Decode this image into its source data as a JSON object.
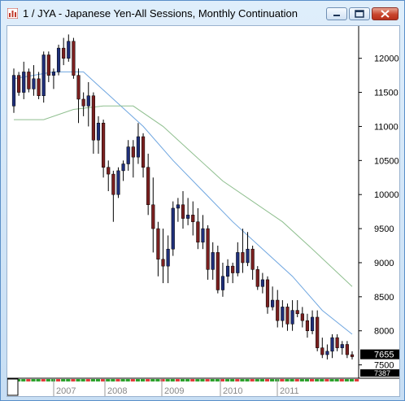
{
  "window": {
    "title": "1 / JYA - Japanese Yen-All Sessions, Monthly Continuation",
    "controls": [
      "minimize-icon",
      "maximize-icon",
      "close-icon"
    ],
    "close_color": "#c8452d"
  },
  "chart_data": {
    "type": "candlestick",
    "title": "1 / JYA - Japanese Yen-All Sessions, Monthly Continuation",
    "ylim": [
      7340,
      12450
    ],
    "y_ticks": [
      12000,
      11500,
      11000,
      10500,
      10000,
      9500,
      9000,
      8500,
      8000,
      7500
    ],
    "x_ticks": [
      "2007",
      "2008",
      "2009",
      "2010",
      "2011"
    ],
    "last_price": "7655",
    "partial_label": "7387",
    "colors": {
      "up": "#1f2f7a",
      "down": "#7a1f1f",
      "ma_fast": "#6fa6e0",
      "ma_slow": "#8fbf8f",
      "last_box": "#000000"
    },
    "ohlc": [
      [
        11300,
        11850,
        11200,
        11750
      ],
      [
        11750,
        11800,
        11450,
        11500
      ],
      [
        11500,
        11950,
        11400,
        11800
      ],
      [
        11800,
        11850,
        11500,
        11550
      ],
      [
        11550,
        11900,
        11450,
        11700
      ],
      [
        11700,
        11800,
        11400,
        11450
      ],
      [
        11450,
        12100,
        11350,
        12050
      ],
      [
        12050,
        12100,
        11650,
        11750
      ],
      [
        11750,
        11850,
        11550,
        11800
      ],
      [
        11800,
        12200,
        11750,
        12150
      ],
      [
        12150,
        12300,
        11900,
        12000
      ],
      [
        12000,
        12350,
        11950,
        12250
      ],
      [
        12250,
        12300,
        11700,
        11750
      ],
      [
        11750,
        11850,
        11050,
        11400
      ],
      [
        11400,
        11500,
        11150,
        11300
      ],
      [
        11300,
        11650,
        11000,
        11450
      ],
      [
        11450,
        11500,
        10600,
        10800
      ],
      [
        10800,
        11150,
        10600,
        11050
      ],
      [
        11050,
        11100,
        10250,
        10400
      ],
      [
        10400,
        10500,
        10050,
        10300
      ],
      [
        10300,
        10350,
        9600,
        10000
      ],
      [
        10000,
        10400,
        9950,
        10350
      ],
      [
        10350,
        10500,
        10200,
        10450
      ],
      [
        10450,
        10800,
        10350,
        10700
      ],
      [
        10700,
        10800,
        10250,
        10550
      ],
      [
        10550,
        11050,
        10450,
        10850
      ],
      [
        10850,
        10900,
        10250,
        10400
      ],
      [
        10400,
        10600,
        9700,
        9850
      ],
      [
        9850,
        10250,
        9150,
        9500
      ],
      [
        9500,
        9600,
        8800,
        9050
      ],
      [
        9050,
        9500,
        8700,
        8950
      ],
      [
        8950,
        9400,
        8700,
        9200
      ],
      [
        9200,
        9900,
        9100,
        9800
      ],
      [
        9800,
        9950,
        9600,
        9850
      ],
      [
        9850,
        10050,
        9500,
        9650
      ],
      [
        9650,
        9950,
        9550,
        9700
      ],
      [
        9700,
        9900,
        9400,
        9600
      ],
      [
        9600,
        9800,
        9200,
        9300
      ],
      [
        9300,
        9700,
        9200,
        9500
      ],
      [
        9500,
        9550,
        8750,
        8900
      ],
      [
        8900,
        9300,
        8750,
        9150
      ],
      [
        9150,
        9250,
        8550,
        8600
      ],
      [
        8600,
        9000,
        8500,
        8800
      ],
      [
        8800,
        9050,
        8700,
        8950
      ],
      [
        8950,
        9000,
        8700,
        8850
      ],
      [
        8850,
        9300,
        8800,
        9150
      ],
      [
        9150,
        9500,
        8850,
        9000
      ],
      [
        9000,
        9450,
        8950,
        9200
      ],
      [
        9200,
        9250,
        8750,
        8900
      ],
      [
        8900,
        8950,
        8600,
        8650
      ],
      [
        8650,
        8850,
        8550,
        8750
      ],
      [
        8750,
        8800,
        8250,
        8350
      ],
      [
        8350,
        8650,
        8300,
        8450
      ],
      [
        8450,
        8600,
        8050,
        8150
      ],
      [
        8150,
        8450,
        8050,
        8350
      ],
      [
        8350,
        8400,
        8000,
        8100
      ],
      [
        8100,
        8450,
        8000,
        8300
      ],
      [
        8300,
        8450,
        8200,
        8250
      ],
      [
        8250,
        8350,
        8050,
        8150
      ],
      [
        8150,
        8250,
        7900,
        8000
      ],
      [
        8000,
        8300,
        7950,
        8200
      ],
      [
        8200,
        8300,
        7700,
        7750
      ],
      [
        7750,
        7900,
        7600,
        7650
      ],
      [
        7650,
        7800,
        7580,
        7700
      ],
      [
        7700,
        7950,
        7600,
        7900
      ],
      [
        7900,
        7950,
        7700,
        7750
      ],
      [
        7750,
        7850,
        7650,
        7800
      ],
      [
        7800,
        7850,
        7600,
        7650
      ],
      [
        7650,
        7700,
        7580,
        7620
      ]
    ],
    "ma_fast": [
      [
        0,
        11700
      ],
      [
        8,
        11800
      ],
      [
        14,
        11800
      ],
      [
        20,
        11400
      ],
      [
        26,
        11000
      ],
      [
        32,
        10500
      ],
      [
        38,
        10050
      ],
      [
        44,
        9600
      ],
      [
        50,
        9200
      ],
      [
        56,
        8800
      ],
      [
        62,
        8300
      ],
      [
        68,
        7950
      ]
    ],
    "ma_slow": [
      [
        0,
        11100
      ],
      [
        6,
        11100
      ],
      [
        12,
        11250
      ],
      [
        18,
        11300
      ],
      [
        24,
        11300
      ],
      [
        30,
        11000
      ],
      [
        36,
        10600
      ],
      [
        42,
        10200
      ],
      [
        48,
        9900
      ],
      [
        54,
        9600
      ],
      [
        60,
        9200
      ],
      [
        68,
        8650
      ]
    ]
  }
}
